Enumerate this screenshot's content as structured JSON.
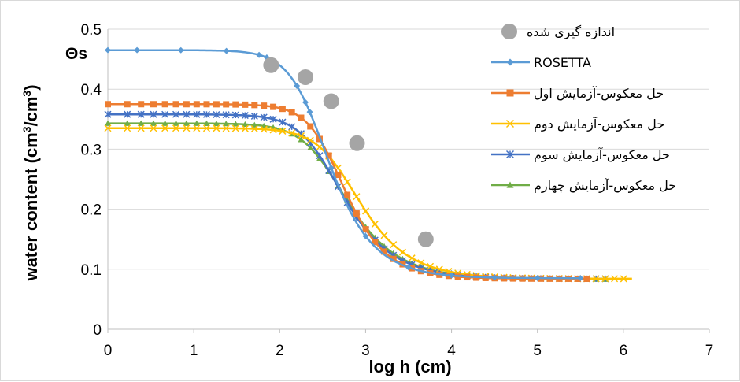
{
  "chart_data": {
    "type": "line",
    "xlabel": "log h (cm)",
    "ylabel_base": "water content (cm",
    "ylabel_sup1": "3",
    "ylabel_mid": "/cm",
    "ylabel_sup2": "3",
    "ylabel_end": ")",
    "xlim": [
      0,
      7
    ],
    "ylim": [
      0,
      0.5
    ],
    "xticks": [
      0,
      1,
      2,
      3,
      4,
      5,
      6,
      7
    ],
    "yticks": [
      0,
      0.1,
      0.2,
      0.3,
      0.4,
      0.5
    ],
    "xtick_labels": [
      "0",
      "1",
      "2",
      "3",
      "4",
      "5",
      "6",
      "7"
    ],
    "ytick_labels": [
      "0",
      "0.1",
      "0.2",
      "0.3",
      "0.4",
      "0.5"
    ],
    "annotation": "Θs",
    "legend_position": "right",
    "grid": "horizontal",
    "series": [
      {
        "name": "اندازه گیری شده",
        "kind": "scatter",
        "color": "#a5a5a5",
        "x": [
          1.9,
          2.3,
          2.6,
          2.9,
          3.7
        ],
        "y": [
          0.44,
          0.42,
          0.38,
          0.31,
          0.15
        ]
      },
      {
        "name": "ROSETTA",
        "kind": "line",
        "marker": "diamond",
        "color": "#5b9bd5",
        "params": {
          "thr": 0.085,
          "ths": 0.465,
          "a": 0.004,
          "n": 2.2
        },
        "marker_x": [
          0,
          0.34,
          0.85,
          1.38,
          1.76,
          1.85,
          2.2,
          2.3,
          2.35,
          2.6,
          3.0,
          3.5,
          4.0,
          4.5,
          5.0,
          5.5
        ]
      },
      {
        "name": "حل معکوس-آزمایش اول",
        "kind": "line",
        "marker": "square",
        "color": "#ed7d31",
        "params": {
          "thr": 0.084,
          "ths": 0.375,
          "a": 0.0025,
          "n": 2.3
        },
        "x_end": 5.6
      },
      {
        "name": "حل معکوس-آزمایش دوم",
        "kind": "line",
        "marker": "x",
        "color": "#ffc000",
        "params": {
          "thr": 0.084,
          "ths": 0.335,
          "a": 0.0019,
          "n": 2.05
        },
        "x_end": 6.1
      },
      {
        "name": "حل معکوس-آزمایش سوم",
        "kind": "line",
        "marker": "star",
        "color": "#4472c4",
        "params": {
          "thr": 0.084,
          "ths": 0.358,
          "a": 0.003,
          "n": 2.05
        },
        "x_end": 5.8
      },
      {
        "name": "حل معکوس-آزمایش چهارم",
        "kind": "line",
        "marker": "triangle",
        "color": "#70ad47",
        "params": {
          "thr": 0.083,
          "ths": 0.343,
          "a": 0.0028,
          "n": 2.0
        },
        "x_end": 5.8
      }
    ]
  }
}
